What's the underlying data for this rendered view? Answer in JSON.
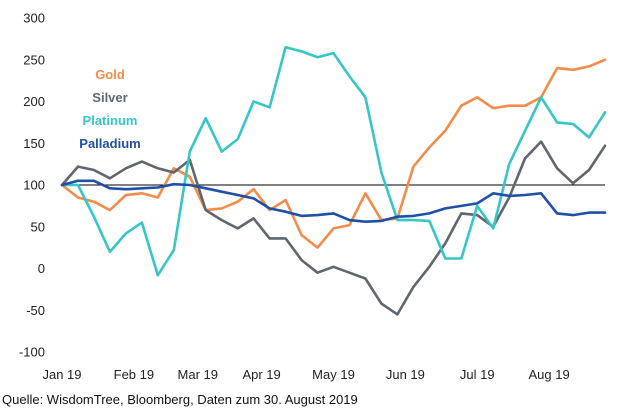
{
  "chart_data": {
    "type": "line",
    "title": "",
    "xlabel": "",
    "ylabel": "",
    "ylim": [
      -100,
      300
    ],
    "yticks": [
      -100,
      -50,
      0,
      50,
      100,
      150,
      200,
      250,
      300
    ],
    "reference_line": 100,
    "grid": false,
    "legend_position": "top-left",
    "x_tick_labels": [
      "Jan 19",
      "Feb 19",
      "Mar 19",
      "Apr 19",
      "May 19",
      "Jun 19",
      "Jul 19",
      "Aug 19"
    ],
    "x_tick_positions": [
      0,
      4.5,
      8.5,
      12.5,
      17,
      21.5,
      26,
      30.5
    ],
    "n_points": 35,
    "series": [
      {
        "name": "Gold",
        "color": "#F28C4A",
        "values": [
          100,
          85,
          80,
          70,
          88,
          90,
          85,
          120,
          110,
          70,
          72,
          80,
          95,
          70,
          82,
          40,
          25,
          48,
          52,
          90,
          58,
          60,
          122,
          145,
          165,
          195,
          205,
          192,
          195,
          195,
          205,
          240,
          238,
          242,
          250
        ]
      },
      {
        "name": "Silver",
        "color": "#5F6670",
        "values": [
          100,
          122,
          118,
          108,
          120,
          128,
          120,
          115,
          130,
          70,
          58,
          48,
          60,
          36,
          36,
          10,
          -5,
          2,
          -5,
          -12,
          -42,
          -55,
          -22,
          2,
          30,
          66,
          64,
          50,
          85,
          132,
          152,
          120,
          102,
          118,
          147
        ]
      },
      {
        "name": "Platinum",
        "color": "#36C6C6",
        "values": [
          100,
          100,
          62,
          20,
          42,
          55,
          -8,
          22,
          140,
          180,
          140,
          155,
          200,
          193,
          265,
          260,
          253,
          258,
          230,
          205,
          115,
          58,
          58,
          57,
          12,
          12,
          75,
          48,
          125,
          165,
          205,
          175,
          173,
          157,
          187
        ]
      },
      {
        "name": "Palladium",
        "color": "#1F4FA6",
        "values": [
          100,
          105,
          105,
          96,
          95,
          96,
          97,
          101,
          100,
          96,
          92,
          88,
          84,
          72,
          68,
          63,
          64,
          66,
          58,
          56,
          57,
          62,
          63,
          66,
          72,
          75,
          78,
          90,
          87,
          88,
          90,
          66,
          64,
          67,
          67
        ]
      }
    ]
  },
  "source": "Quelle: WisdomTree, Bloomberg, Daten zum 30. August 2019"
}
